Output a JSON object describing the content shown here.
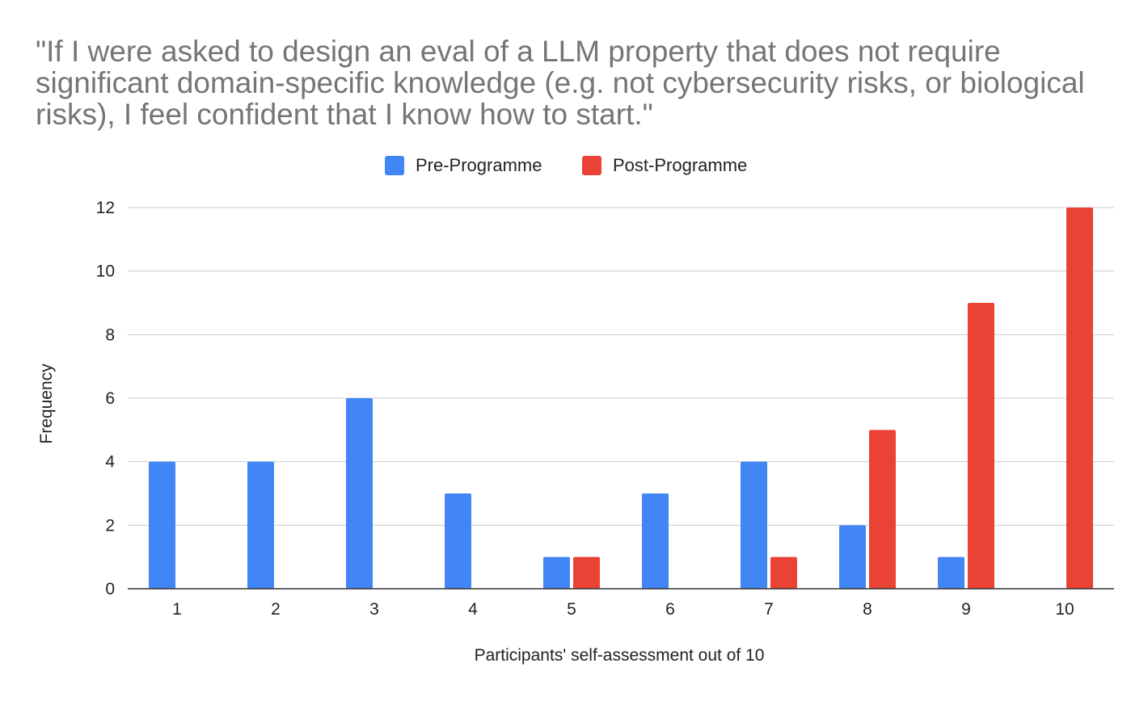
{
  "chart_data": {
    "type": "bar",
    "title": "\"If I were asked to design an eval of a LLM property that does not require significant domain-specific knowledge (e.g. not cybersecurity risks, or biological risks), I feel confident that I know how to start.\"",
    "xlabel": "Participants' self-assessment out of 10",
    "ylabel": "Frequency",
    "categories": [
      "1",
      "2",
      "3",
      "4",
      "5",
      "6",
      "7",
      "8",
      "9",
      "10"
    ],
    "series": [
      {
        "name": "Pre-Programme",
        "color": "#4285F4",
        "values": [
          4,
          4,
          6,
          3,
          1,
          3,
          4,
          2,
          1,
          0
        ]
      },
      {
        "name": "Post-Programme",
        "color": "#EA4335",
        "values": [
          0,
          0,
          0,
          0,
          1,
          0,
          1,
          5,
          9,
          12
        ]
      }
    ],
    "ylim": [
      0,
      12
    ],
    "yticks": [
      "0",
      "2",
      "4",
      "6",
      "8",
      "10",
      "12"
    ],
    "grid": true,
    "legend_position": "top"
  }
}
